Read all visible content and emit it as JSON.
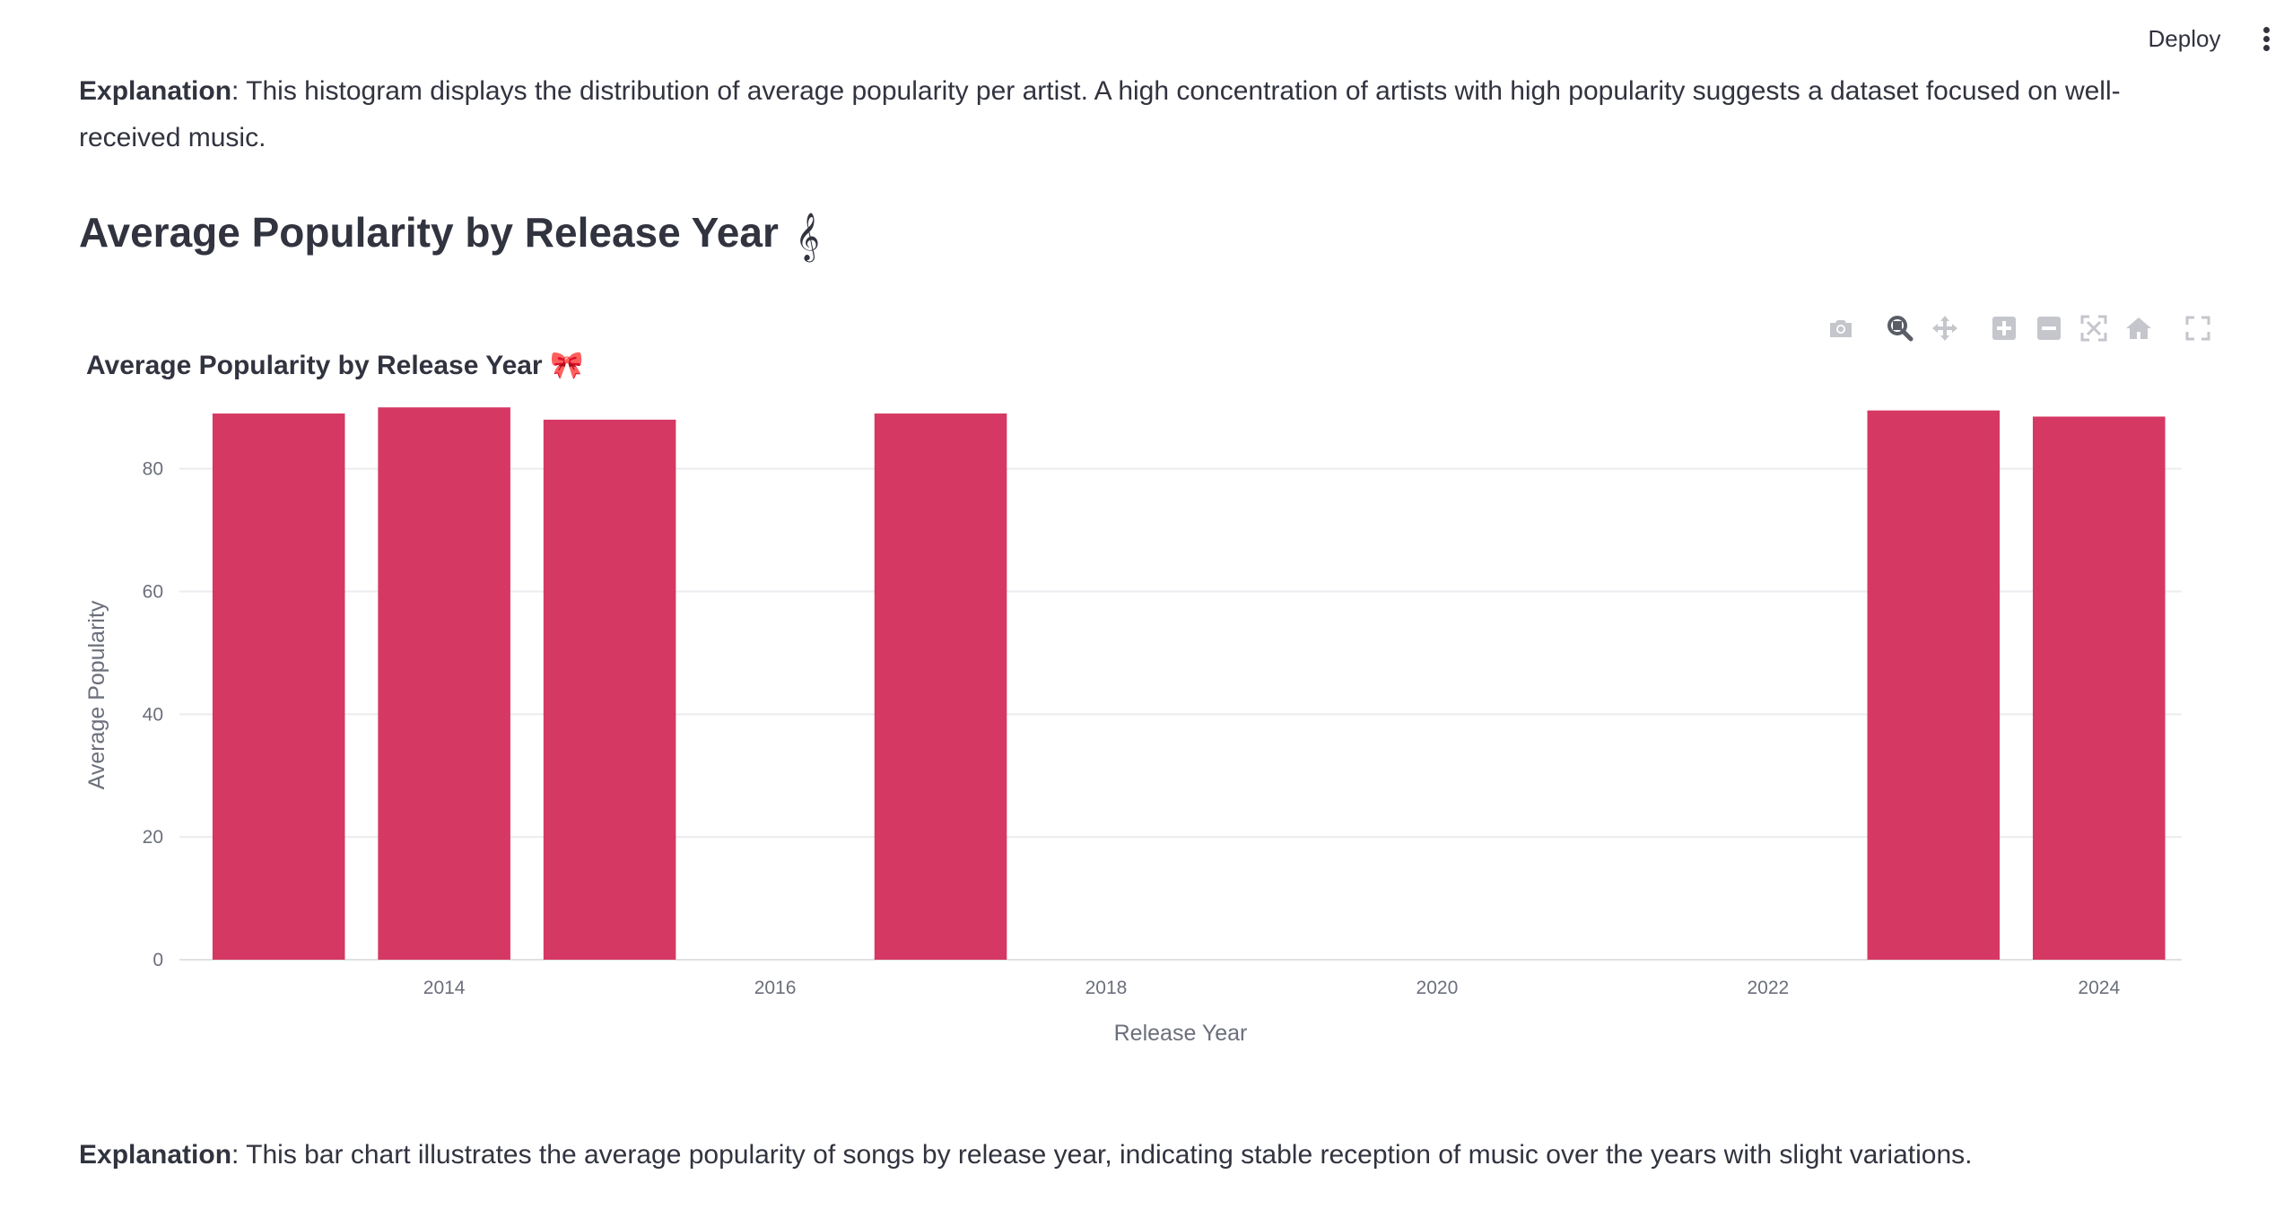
{
  "header": {
    "deploy_label": "Deploy",
    "menu_icon": "kebab-menu-icon"
  },
  "explanation_1": {
    "label": "Explanation",
    "text": ": This histogram displays the distribution of average popularity per artist. A high concentration of artists with high popularity suggests a dataset focused on well-received music."
  },
  "section": {
    "title": "Average Popularity by Release Year",
    "emoji": "𝄞"
  },
  "chart_toolbar": {
    "icons": [
      "camera-icon",
      "zoom-icon",
      "pan-icon",
      "zoom-in-icon",
      "zoom-out-icon",
      "autoscale-icon",
      "reset-axes-icon",
      "fullscreen-icon"
    ]
  },
  "chart_data": {
    "type": "bar",
    "title": "Average Popularity by Release Year",
    "title_emoji": "🎀",
    "xlabel": "Release Year",
    "ylabel": "Average Popularity",
    "x": [
      2013,
      2014,
      2015,
      2017,
      2023,
      2024
    ],
    "values": [
      89,
      90,
      88,
      89,
      89.5,
      88.5
    ],
    "xlim": [
      2012.4,
      2024.5
    ],
    "ylim": [
      0,
      95
    ],
    "xticks": [
      2014,
      2016,
      2018,
      2020,
      2022,
      2024
    ],
    "yticks": [
      0,
      20,
      40,
      60,
      80
    ],
    "bar_color": "#d63864",
    "grid": true
  },
  "explanation_2": {
    "label": "Explanation",
    "text": ": This bar chart illustrates the average popularity of songs by release year, indicating stable reception of music over the years with slight variations."
  }
}
